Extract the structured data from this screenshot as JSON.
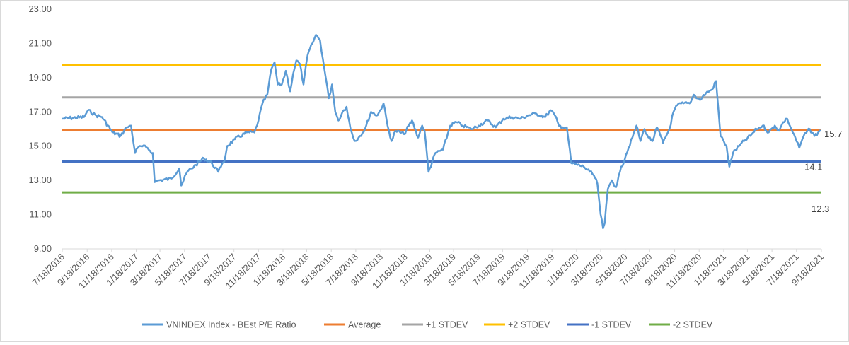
{
  "chart_data": {
    "type": "line",
    "title": "",
    "xlabel": "",
    "ylabel": "",
    "ylim": [
      9,
      23
    ],
    "yticks": [
      "9.00",
      "11.00",
      "13.00",
      "15.00",
      "17.00",
      "19.00",
      "21.00",
      "23.00"
    ],
    "x_range": [
      "2016-07-18",
      "2021-09-18"
    ],
    "xticks": [
      "7/18/2016",
      "9/18/2016",
      "11/18/2016",
      "1/18/2017",
      "3/18/2017",
      "5/18/2017",
      "7/18/2017",
      "9/18/2017",
      "11/18/2017",
      "1/18/2018",
      "3/18/2018",
      "5/18/2018",
      "7/18/2018",
      "9/18/2018",
      "11/18/2018",
      "1/18/2019",
      "3/18/2019",
      "5/18/2019",
      "7/18/2019",
      "9/18/2019",
      "11/18/2019",
      "1/18/2020",
      "3/18/2020",
      "5/18/2020",
      "7/18/2020",
      "9/18/2020",
      "11/18/2020",
      "1/18/2021",
      "3/18/2021",
      "5/18/2021",
      "7/18/2021",
      "9/18/2021"
    ],
    "grid": false,
    "legend_position": "bottom",
    "series": [
      {
        "name": "VNINDEX Index - BEst P/E Ratio",
        "color": "#5b9bd5",
        "x": [
          "2016-07-18",
          "2016-09-10",
          "2016-09-20",
          "2016-10-10",
          "2016-10-25",
          "2016-11-20",
          "2016-12-10",
          "2016-12-25",
          "2017-01-05",
          "2017-01-15",
          "2017-01-22",
          "2017-01-30",
          "2017-02-15",
          "2017-02-28",
          "2017-03-05",
          "2017-03-15",
          "2017-04-15",
          "2017-05-05",
          "2017-05-10",
          "2017-05-25",
          "2017-06-15",
          "2017-07-05",
          "2017-07-25",
          "2017-08-10",
          "2017-08-20",
          "2017-08-25",
          "2017-09-01",
          "2017-09-20",
          "2017-10-20",
          "2017-11-08",
          "2017-11-18",
          "2017-11-28",
          "2017-12-10",
          "2017-12-20",
          "2017-12-28",
          "2018-01-05",
          "2018-01-15",
          "2018-01-25",
          "2018-02-05",
          "2018-02-12",
          "2018-02-20",
          "2018-03-01",
          "2018-03-10",
          "2018-03-20",
          "2018-04-01",
          "2018-04-10",
          "2018-04-20",
          "2018-05-01",
          "2018-05-12",
          "2018-05-20",
          "2018-05-28",
          "2018-06-05",
          "2018-06-15",
          "2018-06-25",
          "2018-07-05",
          "2018-07-15",
          "2018-07-25",
          "2018-08-10",
          "2018-08-25",
          "2018-09-10",
          "2018-09-25",
          "2018-10-05",
          "2018-10-15",
          "2018-10-25",
          "2018-11-15",
          "2018-12-05",
          "2018-12-20",
          "2018-12-30",
          "2019-01-05",
          "2019-01-15",
          "2019-02-01",
          "2019-02-20",
          "2019-03-10",
          "2019-03-25",
          "2019-04-10",
          "2019-05-01",
          "2019-05-20",
          "2019-06-10",
          "2019-07-01",
          "2019-07-20",
          "2019-08-10",
          "2019-09-01",
          "2019-09-20",
          "2019-10-10",
          "2019-11-01",
          "2019-11-15",
          "2019-11-25",
          "2019-12-05",
          "2019-12-15",
          "2019-12-25",
          "2020-01-05",
          "2020-01-20",
          "2020-02-05",
          "2020-02-20",
          "2020-03-01",
          "2020-03-10",
          "2020-03-18",
          "2020-03-24",
          "2020-03-28",
          "2020-04-05",
          "2020-04-15",
          "2020-04-25",
          "2020-05-05",
          "2020-05-20",
          "2020-06-05",
          "2020-06-15",
          "2020-06-25",
          "2020-07-05",
          "2020-07-15",
          "2020-07-25",
          "2020-08-05",
          "2020-08-20",
          "2020-09-05",
          "2020-09-15",
          "2020-09-25",
          "2020-10-10",
          "2020-10-25",
          "2020-11-05",
          "2020-11-20",
          "2020-12-05",
          "2020-12-20",
          "2020-12-30",
          "2021-01-10",
          "2021-01-18",
          "2021-01-25",
          "2021-02-01",
          "2021-02-10",
          "2021-02-25",
          "2021-03-10",
          "2021-03-25",
          "2021-04-10",
          "2021-04-25",
          "2021-05-10",
          "2021-05-25",
          "2021-06-05",
          "2021-06-15",
          "2021-06-25",
          "2021-07-05",
          "2021-07-15",
          "2021-07-25",
          "2021-08-05",
          "2021-08-20",
          "2021-09-01",
          "2021-09-10",
          "2021-09-18"
        ],
        "values": [
          16.6,
          16.7,
          17.1,
          16.8,
          16.7,
          15.8,
          15.6,
          16.1,
          16.2,
          14.6,
          14.9,
          15.0,
          14.9,
          14.6,
          12.9,
          13.0,
          13.1,
          13.7,
          12.7,
          13.5,
          13.9,
          14.3,
          14.0,
          13.5,
          14.0,
          14.1,
          15.0,
          15.4,
          15.8,
          15.8,
          16.5,
          17.5,
          18.0,
          19.5,
          19.9,
          18.6,
          18.6,
          19.4,
          18.2,
          19.2,
          20.0,
          19.8,
          18.6,
          20.3,
          21.0,
          21.5,
          21.2,
          19.5,
          17.8,
          18.6,
          17.0,
          16.5,
          17.0,
          17.3,
          16.0,
          15.3,
          15.5,
          16.0,
          17.0,
          16.8,
          17.5,
          16.2,
          15.3,
          15.9,
          15.7,
          16.5,
          15.5,
          16.2,
          15.9,
          13.5,
          14.6,
          14.8,
          16.2,
          16.4,
          16.2,
          16.0,
          16.2,
          16.5,
          16.1,
          16.6,
          16.7,
          16.6,
          16.8,
          16.9,
          16.7,
          17.1,
          16.8,
          16.2,
          16.1,
          16.1,
          14.0,
          13.9,
          13.8,
          13.5,
          13.3,
          12.8,
          11.0,
          10.2,
          10.5,
          12.5,
          13.0,
          12.6,
          13.5,
          14.5,
          15.5,
          16.2,
          15.3,
          16.0,
          15.5,
          15.3,
          16.1,
          15.2,
          16.0,
          17.0,
          17.4,
          17.5,
          17.5,
          18.0,
          17.7,
          18.1,
          18.3,
          18.8,
          15.6,
          15.3,
          15.0,
          13.8,
          14.6,
          15.0,
          15.3,
          15.6,
          16.0,
          16.2,
          15.8,
          16.2,
          15.9,
          16.4,
          16.6,
          16.0,
          15.5,
          14.9,
          15.6,
          16.0,
          15.6,
          15.8,
          15.9
        ]
      },
      {
        "name": "Average",
        "color": "#ed7d31",
        "value": 15.95
      },
      {
        "name": "+1 STDEV",
        "color": "#a5a5a5",
        "value": 17.85
      },
      {
        "name": "+2 STDEV",
        "color": "#ffc000",
        "value": 19.75
      },
      {
        "name": "-1 STDEV",
        "color": "#4472c4",
        "value": 14.1
      },
      {
        "name": "-2 STDEV",
        "color": "#70ad47",
        "value": 12.3
      }
    ],
    "annotations": [
      "15.7",
      "14.1",
      "12.3"
    ]
  }
}
